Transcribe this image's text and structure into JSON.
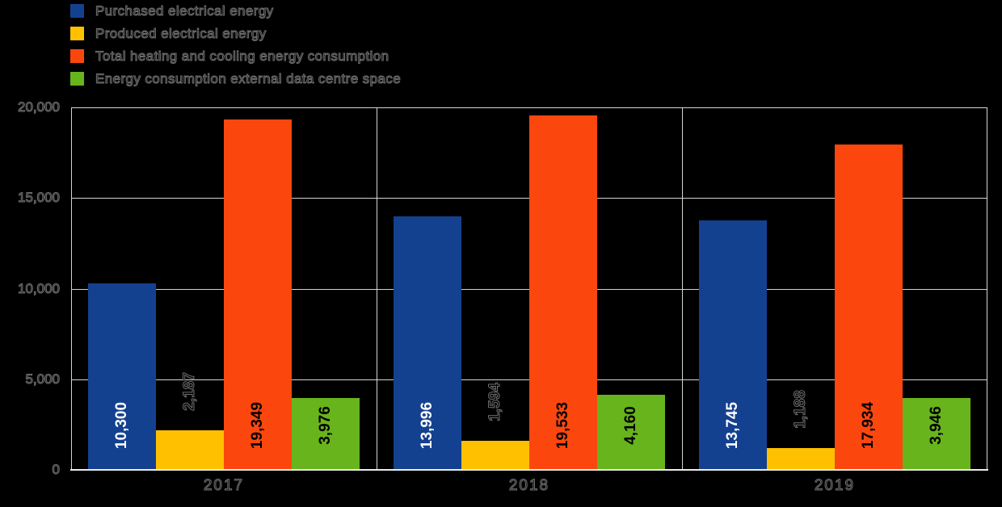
{
  "legend": [
    {
      "key": "purchased",
      "label": "Purchased electrical energy",
      "color": "#14418f"
    },
    {
      "key": "produced",
      "label": "Produced electrical energy",
      "color": "#ffc000"
    },
    {
      "key": "heating-cooling",
      "label": "Total heating and cooling energy consumption",
      "color": "#fb470e"
    },
    {
      "key": "external-dc",
      "label": "Energy consumption external data centre space",
      "color": "#67b41c"
    }
  ],
  "chart_data": {
    "type": "bar",
    "title": "",
    "xlabel": "",
    "ylabel": "",
    "categories": [
      "2017",
      "2018",
      "2019"
    ],
    "series": [
      {
        "key": "purchased",
        "name": "Purchased electrical energy",
        "color": "#14418f",
        "label_style": "inside-white",
        "values": [
          10300,
          13996,
          13745
        ],
        "labels": [
          "10,300",
          "13,996",
          "13,745"
        ]
      },
      {
        "key": "produced",
        "name": "Produced electrical energy",
        "color": "#ffc000",
        "label_style": "outside-ghost",
        "values": [
          2187,
          1594,
          1188
        ],
        "labels": [
          "2,187",
          "1,594",
          "1,188"
        ]
      },
      {
        "key": "heating-cooling",
        "name": "Total heating and cooling energy consumption",
        "color": "#fb470e",
        "label_style": "inside-black",
        "values": [
          19349,
          19533,
          17934
        ],
        "labels": [
          "19,349",
          "19,533",
          "17,934"
        ]
      },
      {
        "key": "external-dc",
        "name": "Energy consumption external data centre space",
        "color": "#67b41c",
        "label_style": "inside-black",
        "values": [
          3976,
          4160,
          3946
        ],
        "labels": [
          "3,976",
          "4,160",
          "3,946"
        ]
      }
    ],
    "ylim": [
      0,
      20000
    ],
    "y_ticks": [
      "0",
      "5,000",
      "10,000",
      "15,000",
      "20,000"
    ],
    "grid": true,
    "value_label_rotation": 90,
    "legend_position": "top-left",
    "background_color": "#000000",
    "grid_color": "#d4d4d4"
  }
}
